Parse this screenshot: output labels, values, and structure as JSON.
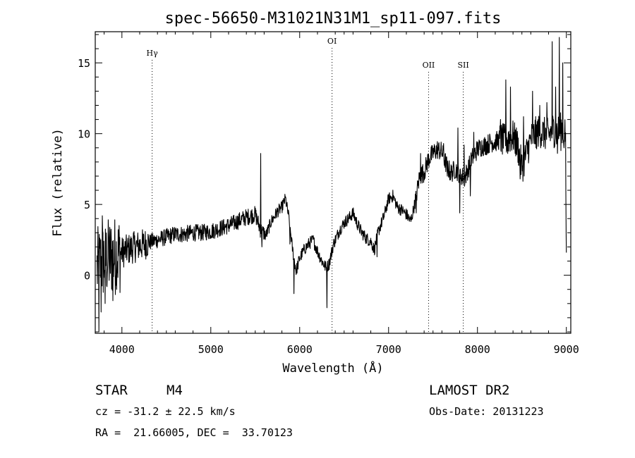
{
  "chart_data": {
    "type": "line",
    "title": "spec-56650-M31021N31M1_sp11-097.fits",
    "xlabel": "Wavelength (Å)",
    "ylabel": "Flux (relative)",
    "xlim": [
      3700,
      9050
    ],
    "ylim": [
      -4.1,
      17.2
    ],
    "xticks": [
      4000,
      5000,
      6000,
      7000,
      8000,
      9000
    ],
    "yticks": [
      0,
      5,
      10,
      15
    ],
    "x_tick_labels": [
      "4000",
      "5000",
      "6000",
      "7000",
      "8000",
      "9000"
    ],
    "y_tick_labels": [
      "0",
      "5",
      "10",
      "15"
    ],
    "grid": false,
    "lines": [
      {
        "label": "Hγ",
        "x": 4340
      },
      {
        "label": "OI",
        "x": 6364
      },
      {
        "label": "OII",
        "x": 7450
      },
      {
        "label": "SII",
        "x": 7840
      }
    ],
    "continuum": [
      [
        3720,
        0.5
      ],
      [
        3800,
        1.1
      ],
      [
        3900,
        1.3
      ],
      [
        4000,
        1.6
      ],
      [
        4100,
        1.9
      ],
      [
        4200,
        2.1
      ],
      [
        4300,
        2.3
      ],
      [
        4400,
        2.5
      ],
      [
        4500,
        2.7
      ],
      [
        4600,
        2.9
      ],
      [
        4700,
        2.9
      ],
      [
        4800,
        3.0
      ],
      [
        4900,
        3.0
      ],
      [
        5000,
        3.1
      ],
      [
        5100,
        3.3
      ],
      [
        5200,
        3.5
      ],
      [
        5300,
        3.8
      ],
      [
        5400,
        4.1
      ],
      [
        5500,
        4.3
      ],
      [
        5560,
        3.2
      ],
      [
        5620,
        2.8
      ],
      [
        5680,
        3.8
      ],
      [
        5750,
        4.5
      ],
      [
        5800,
        4.8
      ],
      [
        5840,
        5.4
      ],
      [
        5880,
        4.0
      ],
      [
        5920,
        1.8
      ],
      [
        5960,
        0.3
      ],
      [
        6000,
        1.2
      ],
      [
        6050,
        1.8
      ],
      [
        6100,
        2.2
      ],
      [
        6150,
        2.5
      ],
      [
        6200,
        1.7
      ],
      [
        6250,
        1.0
      ],
      [
        6300,
        0.5
      ],
      [
        6330,
        0.8
      ],
      [
        6380,
        2.2
      ],
      [
        6450,
        3.2
      ],
      [
        6500,
        3.7
      ],
      [
        6550,
        4.0
      ],
      [
        6600,
        4.4
      ],
      [
        6650,
        3.6
      ],
      [
        6700,
        3.0
      ],
      [
        6750,
        2.6
      ],
      [
        6800,
        2.4
      ],
      [
        6840,
        1.8
      ],
      [
        6880,
        3.0
      ],
      [
        6950,
        4.2
      ],
      [
        7000,
        5.4
      ],
      [
        7050,
        5.6
      ],
      [
        7100,
        4.8
      ],
      [
        7150,
        4.6
      ],
      [
        7200,
        4.3
      ],
      [
        7250,
        3.8
      ],
      [
        7300,
        5.2
      ],
      [
        7350,
        7.0
      ],
      [
        7400,
        7.3
      ],
      [
        7450,
        8.2
      ],
      [
        7500,
        8.6
      ],
      [
        7550,
        8.9
      ],
      [
        7600,
        8.7
      ],
      [
        7650,
        7.8
      ],
      [
        7700,
        7.2
      ],
      [
        7750,
        7.5
      ],
      [
        7800,
        7.2
      ],
      [
        7850,
        6.8
      ],
      [
        7900,
        7.6
      ],
      [
        7950,
        8.4
      ],
      [
        8000,
        8.9
      ],
      [
        8050,
        9.1
      ],
      [
        8100,
        9.2
      ],
      [
        8150,
        9.4
      ],
      [
        8200,
        9.4
      ],
      [
        8250,
        9.6
      ],
      [
        8300,
        9.5
      ],
      [
        8350,
        9.7
      ],
      [
        8400,
        9.8
      ],
      [
        8450,
        9.2
      ],
      [
        8500,
        7.6
      ],
      [
        8550,
        8.6
      ],
      [
        8600,
        9.6
      ],
      [
        8650,
        10.0
      ],
      [
        8700,
        10.2
      ],
      [
        8750,
        10.0
      ],
      [
        8800,
        9.9
      ],
      [
        8850,
        10.3
      ],
      [
        8900,
        10.1
      ],
      [
        8950,
        10.4
      ],
      [
        8990,
        9.8
      ],
      [
        9000,
        1.6
      ]
    ],
    "features": [
      {
        "x": 3740,
        "y": -4.0
      },
      {
        "x": 3765,
        "y": -2.6
      },
      {
        "x": 3780,
        "y": 4.2
      },
      {
        "x": 3810,
        "y": -2.0
      },
      {
        "x": 3850,
        "y": 3.2
      },
      {
        "x": 3900,
        "y": -1.8
      },
      {
        "x": 3940,
        "y": -1.0
      },
      {
        "x": 4130,
        "y": 3.0
      },
      {
        "x": 5560,
        "y": 8.6
      },
      {
        "x": 5575,
        "y": 2.0
      },
      {
        "x": 5890,
        "y": 2.2
      },
      {
        "x": 5935,
        "y": -1.3
      },
      {
        "x": 6305,
        "y": -2.3
      },
      {
        "x": 6310,
        "y": 0.5
      },
      {
        "x": 6870,
        "y": 1.3
      },
      {
        "x": 7310,
        "y": 4.4
      },
      {
        "x": 7360,
        "y": 8.6
      },
      {
        "x": 7620,
        "y": 9.3
      },
      {
        "x": 7660,
        "y": 7.0
      },
      {
        "x": 7780,
        "y": 10.4
      },
      {
        "x": 7800,
        "y": 4.4
      },
      {
        "x": 7850,
        "y": 9.2
      },
      {
        "x": 7920,
        "y": 5.6
      },
      {
        "x": 7960,
        "y": 10.1
      },
      {
        "x": 8260,
        "y": 11.0
      },
      {
        "x": 8320,
        "y": 13.8
      },
      {
        "x": 8340,
        "y": 8.6
      },
      {
        "x": 8370,
        "y": 13.3
      },
      {
        "x": 8480,
        "y": 6.8
      },
      {
        "x": 8520,
        "y": 11.2
      },
      {
        "x": 8620,
        "y": 13.0
      },
      {
        "x": 8660,
        "y": 9.0
      },
      {
        "x": 8700,
        "y": 12.0
      },
      {
        "x": 8780,
        "y": 12.2
      },
      {
        "x": 8840,
        "y": 16.5
      },
      {
        "x": 8860,
        "y": 9.0
      },
      {
        "x": 8880,
        "y": 13.3
      },
      {
        "x": 8900,
        "y": 8.6
      },
      {
        "x": 8920,
        "y": 16.8
      },
      {
        "x": 8940,
        "y": 8.8
      },
      {
        "x": 8960,
        "y": 15.0
      },
      {
        "x": 8975,
        "y": 9.0
      }
    ]
  },
  "info": {
    "object_class": "STAR",
    "subclass": "M4",
    "survey": "LAMOST DR2",
    "redshift": "cz = -31.2 ± 22.5 km/s",
    "obs_date": "Obs-Date: 20131223",
    "coords": "RA =  21.66005, DEC =  33.70123"
  }
}
